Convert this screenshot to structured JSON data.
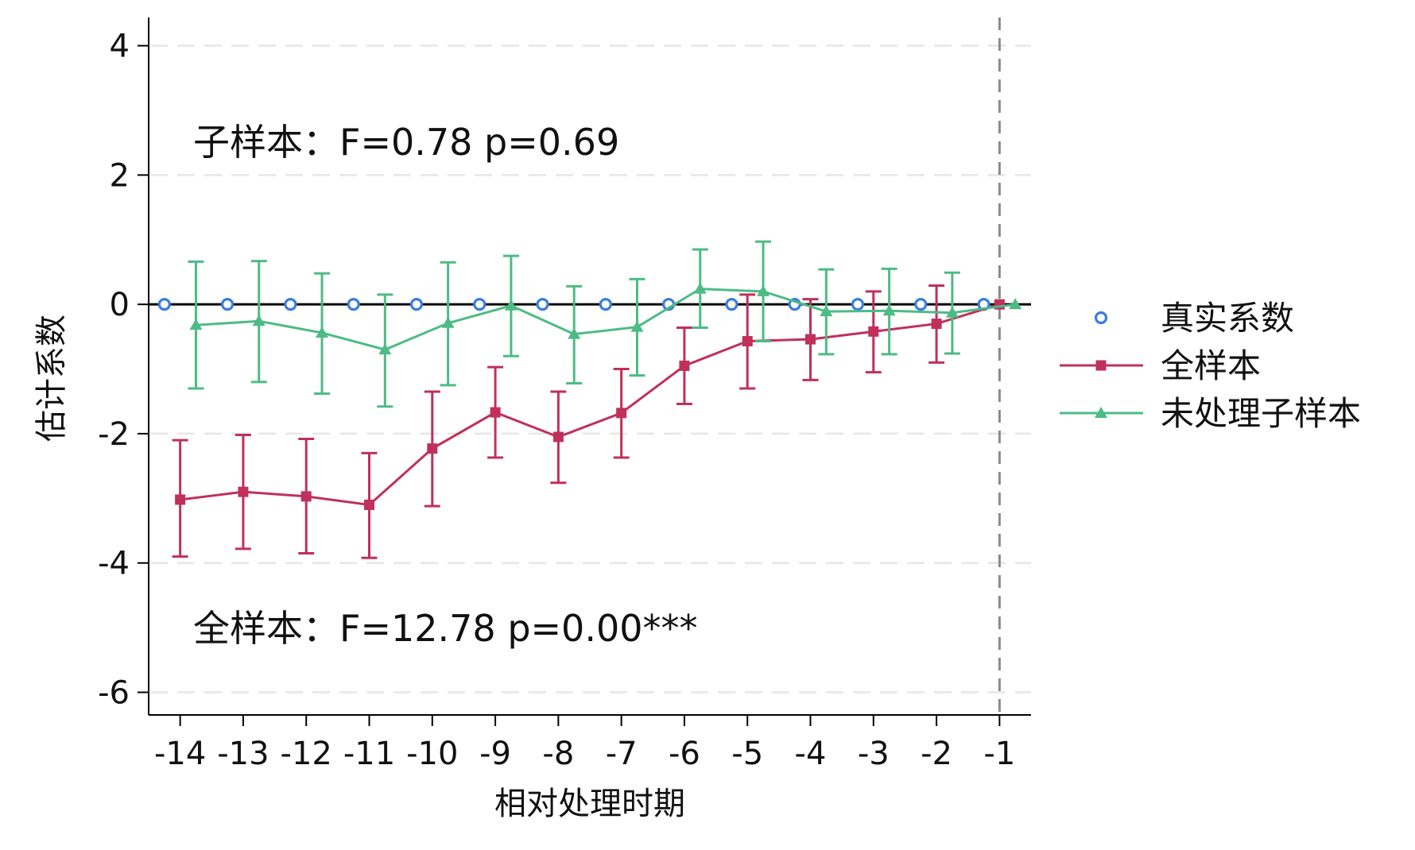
{
  "chart_data": {
    "type": "line",
    "title": "",
    "xlabel": "相对处理时期",
    "ylabel": "估计系数",
    "x": [
      -14,
      -13,
      -12,
      -11,
      -10,
      -9,
      -8,
      -7,
      -6,
      -5,
      -4,
      -3,
      -2,
      -1
    ],
    "x_tick_labels": [
      "-14",
      "-13",
      "-12",
      "-11",
      "-10",
      "-9",
      "-8",
      "-7",
      "-6",
      "-5",
      "-4",
      "-3",
      "-2",
      "-1"
    ],
    "xlim": [
      -14.5,
      -0.5
    ],
    "ylim": [
      -6.35,
      4.4
    ],
    "y_ticks": [
      4,
      2,
      0,
      -2,
      -4,
      -6
    ],
    "y_tick_labels": [
      "4",
      "2",
      "0",
      "-2",
      "-4",
      "-6"
    ],
    "grid": "horizontal dashed",
    "reference_line_y": 0,
    "reference_line_x": -1,
    "legend_position": "right",
    "series": [
      {
        "name": "真实系数",
        "marker": "hollow-circle",
        "color": "#3b7ddd",
        "x_offset": -0.25,
        "values": [
          0,
          0,
          0,
          0,
          0,
          0,
          0,
          0,
          0,
          0,
          0,
          0,
          0,
          0
        ]
      },
      {
        "name": "全样本",
        "marker": "square",
        "color": "#c0305a",
        "x_offset": 0,
        "values": [
          -3.02,
          -2.9,
          -2.97,
          -3.1,
          -2.23,
          -1.67,
          -2.05,
          -1.68,
          -0.95,
          -0.57,
          -0.54,
          -0.42,
          -0.3,
          0
        ],
        "ci_low": [
          -3.9,
          -3.78,
          -3.85,
          -3.92,
          -3.12,
          -2.37,
          -2.76,
          -2.37,
          -1.54,
          -1.3,
          -1.17,
          -1.05,
          -0.9,
          null
        ],
        "ci_high": [
          -2.1,
          -2.02,
          -2.08,
          -2.3,
          -1.35,
          -0.97,
          -1.35,
          -1.0,
          -0.36,
          0.15,
          0.08,
          0.2,
          0.29,
          null
        ]
      },
      {
        "name": "未处理子样本",
        "marker": "triangle",
        "color": "#4dbb85",
        "x_offset": 0.25,
        "values": [
          -0.32,
          -0.26,
          -0.44,
          -0.7,
          -0.29,
          -0.02,
          -0.46,
          -0.35,
          0.24,
          0.2,
          -0.11,
          -0.1,
          -0.13,
          0
        ],
        "ci_low": [
          -1.3,
          -1.2,
          -1.38,
          -1.58,
          -1.25,
          -0.8,
          -1.22,
          -1.1,
          -0.36,
          -0.57,
          -0.77,
          -0.77,
          -0.76,
          null
        ],
        "ci_high": [
          0.66,
          0.67,
          0.48,
          0.15,
          0.65,
          0.75,
          0.28,
          0.39,
          0.85,
          0.97,
          0.54,
          0.55,
          0.49,
          null
        ]
      }
    ],
    "annotations": [
      {
        "id": "sub",
        "text": "子样本：F=0.78  p=0.69"
      },
      {
        "id": "full",
        "text": "全样本：F=12.78  p=0.00***"
      }
    ]
  }
}
